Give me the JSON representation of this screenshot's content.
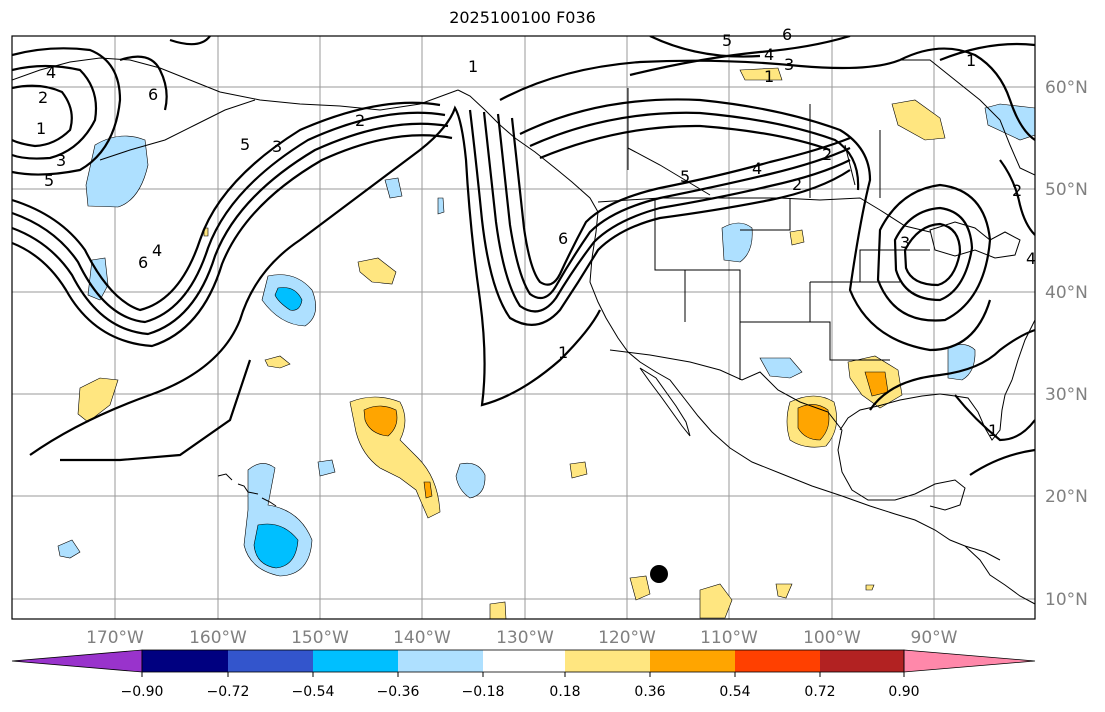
{
  "title": "2025100100 F036",
  "lon_labels": [
    "170°W",
    "160°W",
    "150°W",
    "140°W",
    "130°W",
    "120°W",
    "110°W",
    "100°W",
    "90°W"
  ],
  "lat_labels": [
    "60°N",
    "50°N",
    "40°N",
    "30°N",
    "20°N",
    "10°N"
  ],
  "colorbar": {
    "colors": [
      "#9933cc",
      "#000080",
      "#3355cc",
      "#00bfff",
      "#aee0ff",
      "#ffffff",
      "#ffe680",
      "#ffa500",
      "#ff4000",
      "#b22222",
      "#ff88aa"
    ],
    "tick_labels": [
      "−0.90",
      "−0.72",
      "−0.54",
      "−0.36",
      "−0.18",
      "0.18",
      "0.36",
      "0.54",
      "0.72",
      "0.90"
    ]
  },
  "contour_labels": [
    "4",
    "2",
    "1",
    "3",
    "5",
    "6",
    "5",
    "3",
    "2",
    "6",
    "4",
    "1",
    "1",
    "6",
    "5",
    "4",
    "2",
    "5",
    "4",
    "3",
    "6",
    "2",
    "1",
    "3",
    "1",
    "2",
    "4",
    "1"
  ],
  "marker": {
    "label": "point marker",
    "color": "#000000"
  }
}
